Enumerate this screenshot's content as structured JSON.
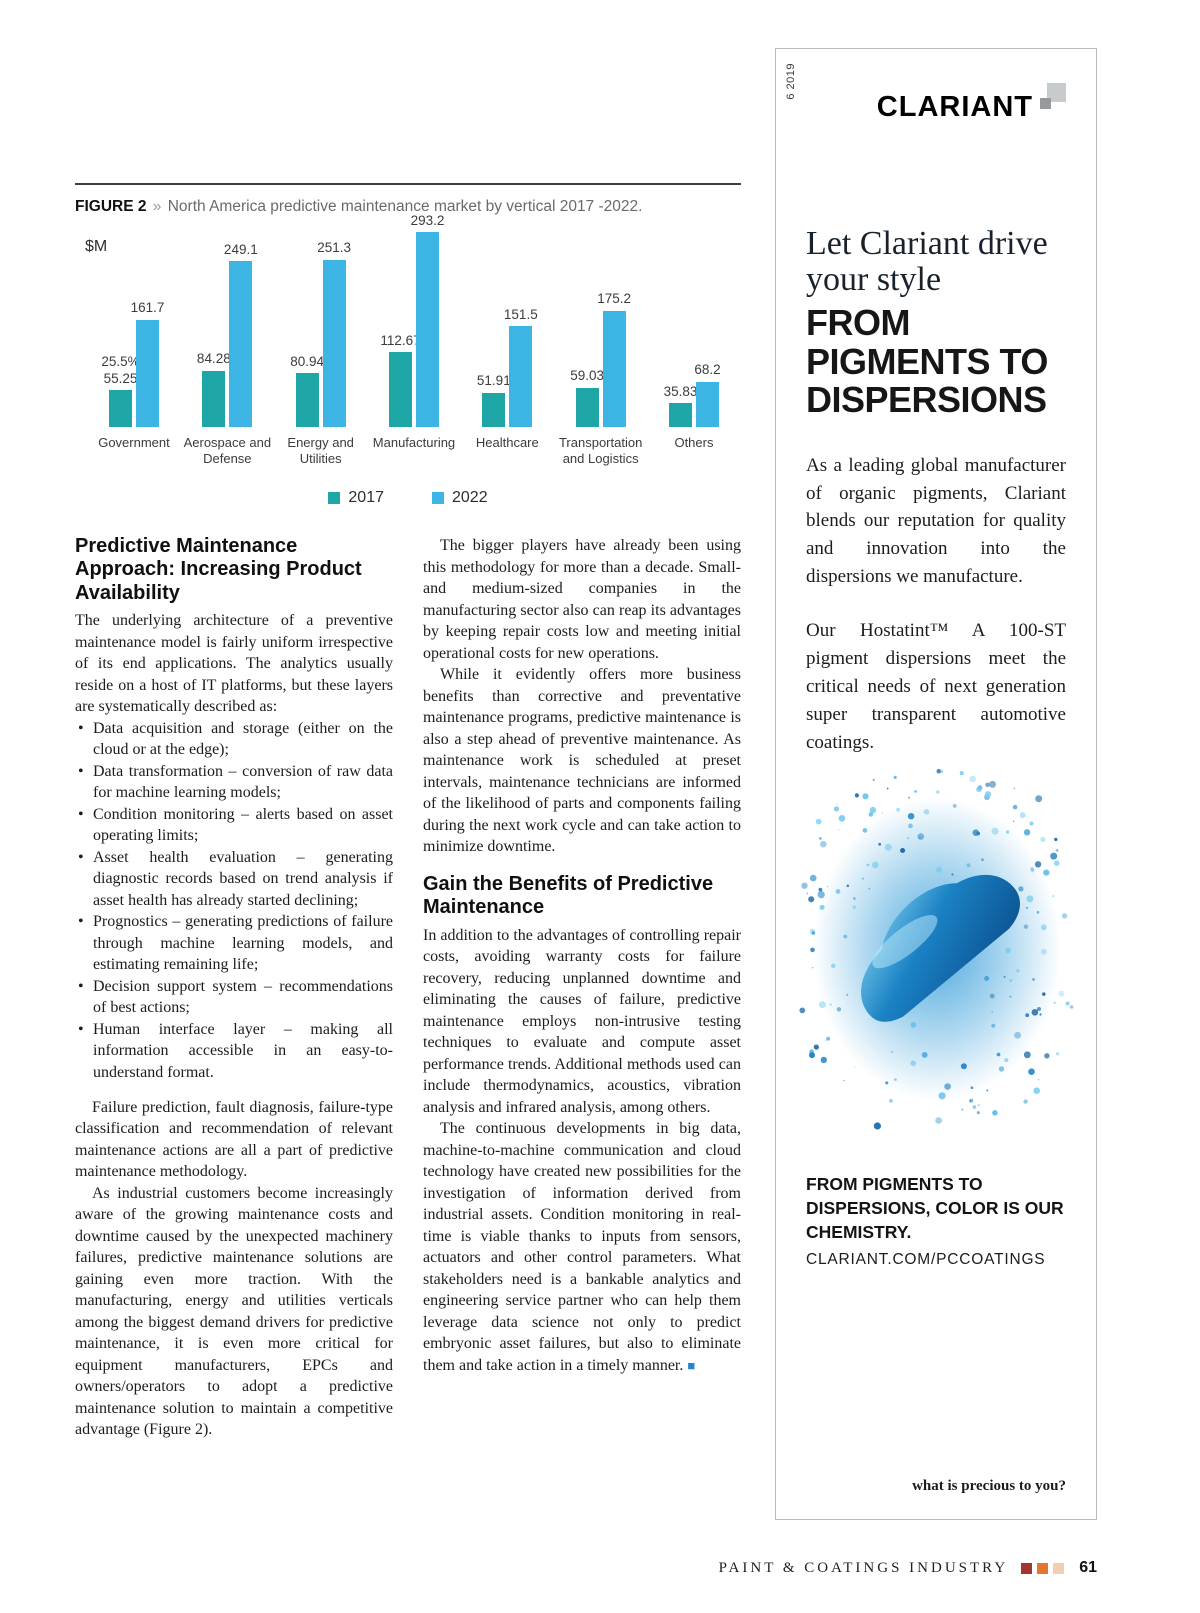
{
  "figure": {
    "label": "FIGURE 2",
    "chevron": "»",
    "caption": "North America predictive maintenance market by vertical 2017 -2022."
  },
  "chart_data": {
    "type": "bar",
    "title": "North America predictive maintenance market by vertical 2017 -2022",
    "ylabel": "$M",
    "xlabel": "",
    "ylim": [
      0,
      300
    ],
    "grid": false,
    "legend_position": "bottom",
    "categories": [
      "Government",
      "Aerospace and Defense",
      "Energy and Utilities",
      "Manufacturing",
      "Healthcare",
      "Transportation and Logistics",
      "Others"
    ],
    "series": [
      {
        "name": "2017",
        "color": "#1ea5a5",
        "values": [
          55.25,
          84.28,
          80.94,
          112.67,
          51.91,
          59.03,
          35.83
        ]
      },
      {
        "name": "2022",
        "color": "#3cb5e5",
        "values": [
          161.7,
          249.1,
          251.3,
          293.2,
          151.5,
          175.2,
          68.2
        ]
      }
    ],
    "annotation": {
      "category": "Government",
      "series": "2017",
      "text": "25.5%"
    }
  },
  "article": {
    "end_mark": "■",
    "end_mark_color": "#2884c8",
    "column1": {
      "heading": "Predictive Maintenance Approach: Increasing Product Availability",
      "intro": "The underlying architecture of a preventive maintenance model is fairly uniform irrespective of its end applications. The analytics usually reside on a host of IT platforms, but these layers are systematically described as:",
      "bullets": [
        "Data acquisition and storage (either on the cloud or at the edge);",
        "Data transformation – conversion of raw data for machine learning models;",
        "Condition monitoring – alerts based on asset operating limits;",
        "Asset health evaluation – generating diagnostic records based on trend analysis if asset health has already started declining;",
        "Prognostics – generating predictions of failure through machine learning models, and estimating remaining life;",
        "Decision support system – recommendations of best actions;",
        "Human interface layer – making all information accessible in an easy-to-understand format."
      ],
      "paragraphs": [
        "Failure prediction, fault diagnosis, failure-type classification and recommendation of relevant maintenance actions are all a part of predictive maintenance methodology.",
        "As industrial customers become increasingly aware of the growing maintenance costs and downtime caused by the unexpected machinery failures, predictive maintenance solutions are gaining even more traction. With the manufacturing, energy and utilities verticals among the biggest demand drivers for predictive maintenance, it is even more critical for equipment manufacturers, EPCs and owners/operators to adopt a predictive maintenance solution to maintain a competitive advantage (Figure 2)."
      ]
    },
    "column2": {
      "paragraphs": [
        "The bigger players have already been using this methodology for more than a decade. Small- and medium-sized companies in the manufacturing sector also can reap its advantages by keeping repair costs low and meeting initial operational costs for new operations.",
        "While it evidently offers more business benefits than corrective and preventative maintenance programs, predictive maintenance is also a step ahead of preventive maintenance. As maintenance work is scheduled at preset intervals, maintenance technicians are informed of the likelihood of parts and components failing during the next work cycle and can take action to minimize downtime."
      ],
      "heading": "Gain the Benefits of Predictive Maintenance",
      "paragraphs2": [
        "In addition to the advantages of controlling repair costs, avoiding warranty costs for failure recovery, reducing unplanned downtime and eliminating the causes of failure, predictive maintenance employs non-intrusive testing techniques to evaluate and compute asset performance trends. Additional methods used can include thermodynamics, acoustics, vibration analysis and infrared analysis, among others.",
        "The continuous developments in big data, machine-to-machine communication and cloud technology have created new possibilities for the investigation of information derived from industrial assets. Condition monitoring in real-time is viable thanks to inputs from sensors, actuators and other control parameters. What stakeholders need is a bankable analytics and engineering service partner who can help them leverage data science not only to predict embryonic asset failures, but also to eliminate them and take action in a timely manner."
      ]
    }
  },
  "ad": {
    "issue": "6 2019",
    "brand": "CLARIANT",
    "headline_serif": "Let Clariant drive your style",
    "headline_bold": "FROM PIGMENTS TO DISPERSIONS",
    "body1": "As a leading global manufacturer of organic pigments, Clariant blends our reputation for quality and innovation into the dispersions we manufacture.",
    "body2": "Our Hostatint™ A 100-ST pigment dispersions meet the critical needs of next generation super transparent automotive coatings.",
    "tagline": "FROM PIGMENTS TO DISPERSIONS, COLOR IS OUR CHEMISTRY.",
    "url": "CLARIANT.COM/PCCOATINGS",
    "footer": "what is precious to you?"
  },
  "footer": {
    "magazine": "PAINT & COATINGS INDUSTRY",
    "page_number": "61"
  }
}
